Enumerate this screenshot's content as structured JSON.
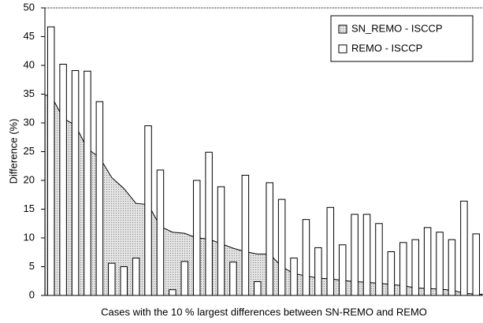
{
  "chart_data": {
    "type": "bar-area",
    "x_label": "Cases with the 10 % largest differences between SN-REMO and REMO",
    "y_label": "Difference (%)",
    "categories": [
      null,
      null,
      null,
      null,
      null,
      null,
      null,
      null,
      null,
      null,
      null,
      null,
      null,
      null,
      null,
      null,
      null,
      null,
      null,
      null,
      null,
      null,
      null,
      null,
      null,
      null,
      null,
      null,
      null,
      null,
      null,
      null,
      null,
      null,
      null,
      null
    ],
    "series": [
      {
        "name": "SN_REMO - ISCCP",
        "kind": "area",
        "color": "#d4d4d4",
        "values": [
          34.8,
          30.8,
          29.6,
          25.5,
          24.0,
          20.5,
          18.6,
          16.0,
          15.8,
          12.0,
          11.0,
          10.8,
          10.0,
          9.8,
          9.0,
          8.2,
          7.6,
          7.2,
          7.2,
          5.0,
          3.8,
          3.4,
          3.0,
          2.9,
          2.6,
          2.4,
          2.3,
          2.1,
          1.9,
          1.7,
          1.3,
          1.2,
          1.1,
          0.9,
          0.4,
          0.2
        ]
      },
      {
        "name": "REMO - ISCCP",
        "kind": "bar",
        "color": "#ffffff",
        "values": [
          46.7,
          40.2,
          39.1,
          39.0,
          33.7,
          5.6,
          5.0,
          6.5,
          29.5,
          21.8,
          1.0,
          5.9,
          20.0,
          24.9,
          18.9,
          5.8,
          20.9,
          2.4,
          19.6,
          16.7,
          6.5,
          13.2,
          8.3,
          15.3,
          8.8,
          14.1,
          14.1,
          12.5,
          7.6,
          9.2,
          9.7,
          11.8,
          11.0,
          9.7,
          16.4,
          10.7
        ]
      }
    ],
    "ylim": [
      0,
      50
    ],
    "yticks": [
      0,
      5,
      10,
      15,
      20,
      25,
      30,
      35,
      40,
      45,
      50
    ],
    "legend": "top-right"
  }
}
